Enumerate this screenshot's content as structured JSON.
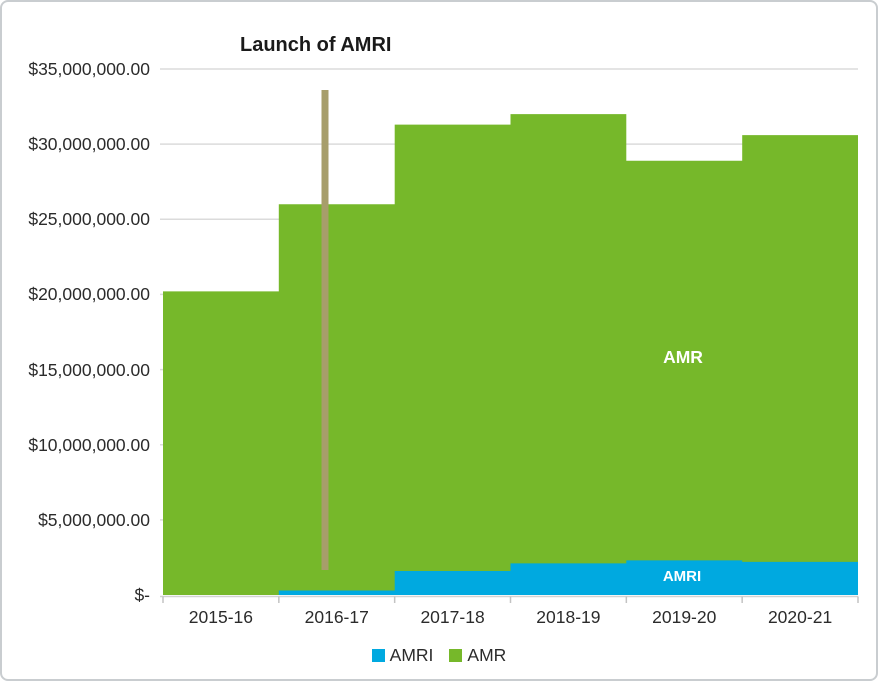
{
  "window": {
    "background": "#ffffff",
    "border_color": "#c9cdd0"
  },
  "chart_data": {
    "type": "area",
    "subtype": "stacked-step",
    "title": "",
    "xlabel": "",
    "ylabel": "",
    "categories": [
      "2015-16",
      "2016-17",
      "2017-18",
      "2018-19",
      "2019-20",
      "2020-21"
    ],
    "series": [
      {
        "name": "AMRI",
        "color": "#00A9E0",
        "values": [
          0,
          300000,
          1600000,
          2100000,
          2300000,
          2200000
        ]
      },
      {
        "name": "AMR",
        "color": "#76B82A",
        "values": [
          20200000,
          25700000,
          29700000,
          29900000,
          26600000,
          28400000
        ]
      }
    ],
    "stacked_totals": [
      20200000,
      26000000,
      31300000,
      32000000,
      28900000,
      30600000
    ],
    "ylim": [
      0,
      35000000
    ],
    "ytick_step": 5000000,
    "ytick_labels": [
      "$-",
      "$5,000,000.00",
      "$10,000,000.00",
      "$15,000,000.00",
      "$20,000,000.00",
      "$25,000,000.00",
      "$30,000,000.00",
      "$35,000,000.00"
    ],
    "grid": true,
    "legend_position": "bottom-center",
    "annotation": {
      "label": "Launch of AMRI",
      "x_category": "2016-17",
      "color": "#A79E6B"
    },
    "inner_labels": {
      "amr": "AMR",
      "amri": "AMRI"
    },
    "legend": [
      {
        "label": "AMRI",
        "color": "#00A9E0"
      },
      {
        "label": "AMR",
        "color": "#76B82A"
      }
    ]
  },
  "colors": {
    "gridline": "#DBDBDB",
    "axis_line": "#D2D2D2",
    "tick": "#C3C3C3",
    "label_text": "#2b2b2b",
    "title_text": "#1a1a1a",
    "inner_label_text": "#ffffff"
  }
}
